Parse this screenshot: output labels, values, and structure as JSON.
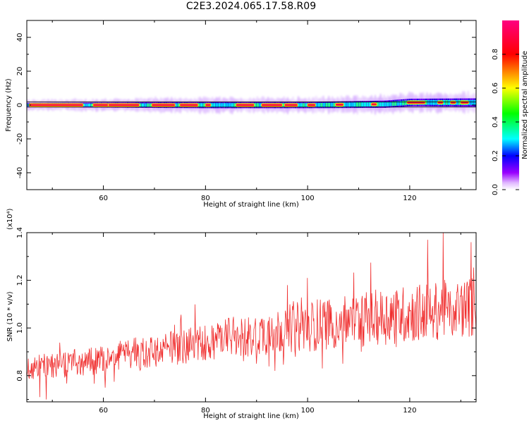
{
  "title": "C2E3.2024.065.17.58.R09",
  "chart_data": [
    {
      "type": "heatmap",
      "xlabel": "Height of straight line (km)",
      "ylabel": "Frequency (Hz)",
      "xlim": [
        45,
        133
      ],
      "ylim": [
        -50,
        50
      ],
      "xticks": [
        60,
        80,
        100,
        120
      ],
      "yticks": [
        -40,
        -20,
        0,
        20,
        40
      ],
      "colorbar": {
        "label": "Normalized spectral amplitude",
        "range": [
          0.0,
          1.0
        ],
        "ticks": [
          "0.0",
          "0.2",
          "0.4",
          "0.6",
          "0.8"
        ]
      },
      "band": {
        "center_hz": [
          [
            45,
            0
          ],
          [
            80,
            0
          ],
          [
            100,
            0
          ],
          [
            115,
            0.5
          ],
          [
            120,
            1.5
          ],
          [
            133,
            1.5
          ]
        ],
        "halfwidth_hz": [
          [
            45,
            2
          ],
          [
            80,
            3
          ],
          [
            100,
            3
          ],
          [
            133,
            4
          ]
        ],
        "peak_segments": [
          [
            45.5,
            56
          ],
          [
            58,
            61
          ],
          [
            61,
            67
          ],
          [
            69.5,
            74
          ],
          [
            75,
            78.5
          ],
          [
            80,
            81
          ],
          [
            86,
            89.5
          ],
          [
            91,
            95
          ],
          [
            95.5,
            98
          ],
          [
            100,
            101.5
          ],
          [
            105.5,
            107
          ],
          [
            112.5,
            113.5
          ],
          [
            119.5,
            123
          ],
          [
            125.5,
            126.5
          ],
          [
            128,
            129
          ],
          [
            130,
            131.5
          ]
        ]
      }
    },
    {
      "type": "line",
      "xlabel": "Height of straight line (km)",
      "ylabel": "SNR (10 * v/v)",
      "y_multiplier": "(x10⁴)",
      "xlim": [
        45,
        133
      ],
      "ylim": [
        0.69,
        1.4
      ],
      "xticks": [
        60,
        80,
        100,
        120
      ],
      "yticks": [
        0.8,
        1.0,
        1.2,
        1.4
      ],
      "series": [
        {
          "color": "#f03030",
          "trend": [
            [
              45,
              0.83
            ],
            [
              60,
              0.87
            ],
            [
              80,
              0.94
            ],
            [
              100,
              1.01
            ],
            [
              120,
              1.06
            ],
            [
              133,
              1.09
            ]
          ],
          "amplitude": [
            [
              45,
              0.05
            ],
            [
              80,
              0.08
            ],
            [
              100,
              0.11
            ],
            [
              133,
              0.13
            ]
          ],
          "peaks": [
            [
              126.5,
              1.4
            ],
            [
              123.5,
              1.37
            ],
            [
              132,
              1.36
            ],
            [
              100,
              1.21
            ],
            [
              96,
              1.18
            ],
            [
              47.5,
              0.71
            ],
            [
              48.8,
              0.7
            ]
          ]
        }
      ]
    }
  ]
}
